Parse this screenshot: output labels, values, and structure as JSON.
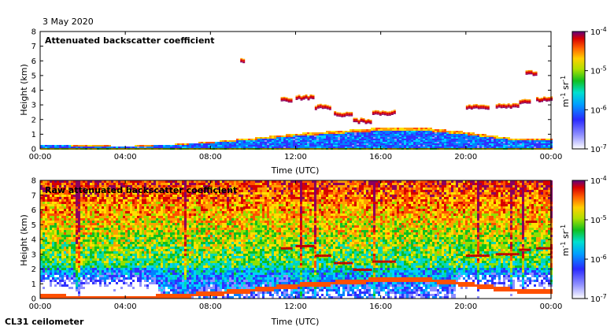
{
  "header": {
    "date": "3 May 2020"
  },
  "footer": {
    "instrument": "CL31 ceilometer"
  },
  "chart_data": [
    {
      "type": "heatmap",
      "title": "Attenuated backscatter coefficient",
      "xlabel": "Time (UTC)",
      "ylabel": "Height (km)",
      "x_ticks": [
        "00:00",
        "04:00",
        "08:00",
        "12:00",
        "16:00",
        "20:00",
        "00:00"
      ],
      "y_ticks": [
        "0",
        "1",
        "2",
        "3",
        "4",
        "5",
        "6",
        "7",
        "8"
      ],
      "xlim_hours": [
        0,
        24
      ],
      "ylim_km": [
        0,
        8
      ],
      "colorbar": {
        "scale": "log",
        "range": [
          1e-07,
          0.0001
        ],
        "ticks": [
          "10-7",
          "10-6",
          "10-5",
          "10-4"
        ],
        "label": "m-1 sr-1"
      },
      "features": {
        "boundary_layer_top_km": [
          [
            0,
            0.35
          ],
          [
            4,
            0.25
          ],
          [
            6,
            0.35
          ],
          [
            8,
            0.55
          ],
          [
            10,
            0.8
          ],
          [
            12,
            1.1
          ],
          [
            14,
            1.3
          ],
          [
            16,
            1.5
          ],
          [
            18,
            1.5
          ],
          [
            20,
            1.2
          ],
          [
            22,
            0.8
          ],
          [
            24,
            0.7
          ]
        ],
        "cloud_segments": [
          {
            "t0": 9.4,
            "t1": 9.6,
            "h": 6.1
          },
          {
            "t0": 11.3,
            "t1": 11.8,
            "h": 3.4
          },
          {
            "t0": 12.0,
            "t1": 12.8,
            "h": 3.55
          },
          {
            "t0": 12.9,
            "t1": 13.6,
            "h": 2.9
          },
          {
            "t0": 13.8,
            "t1": 14.6,
            "h": 2.4
          },
          {
            "t0": 14.7,
            "t1": 15.5,
            "h": 1.95
          },
          {
            "t0": 15.6,
            "t1": 16.7,
            "h": 2.5
          },
          {
            "t0": 20.0,
            "t1": 21.0,
            "h": 2.9
          },
          {
            "t0": 21.4,
            "t1": 22.4,
            "h": 3.0
          },
          {
            "t0": 22.5,
            "t1": 23.0,
            "h": 3.3
          },
          {
            "t0": 22.8,
            "t1": 23.3,
            "h": 5.2
          },
          {
            "t0": 23.3,
            "t1": 24.0,
            "h": 3.4
          }
        ]
      }
    },
    {
      "type": "heatmap",
      "title": "Raw attenuated backscatter coefficient",
      "xlabel": "Time (UTC)",
      "ylabel": "Height (km)",
      "x_ticks": [
        "00:00",
        "04:00",
        "08:00",
        "12:00",
        "16:00",
        "20:00",
        "00:00"
      ],
      "y_ticks": [
        "0",
        "1",
        "2",
        "3",
        "4",
        "5",
        "6",
        "7",
        "8"
      ],
      "xlim_hours": [
        0,
        24
      ],
      "ylim_km": [
        0,
        8
      ],
      "colorbar": {
        "scale": "log",
        "range": [
          1e-07,
          0.0001
        ],
        "ticks": [
          "10-7",
          "10-6",
          "10-5",
          "10-4"
        ],
        "label": "m-1 sr-1"
      }
    }
  ]
}
